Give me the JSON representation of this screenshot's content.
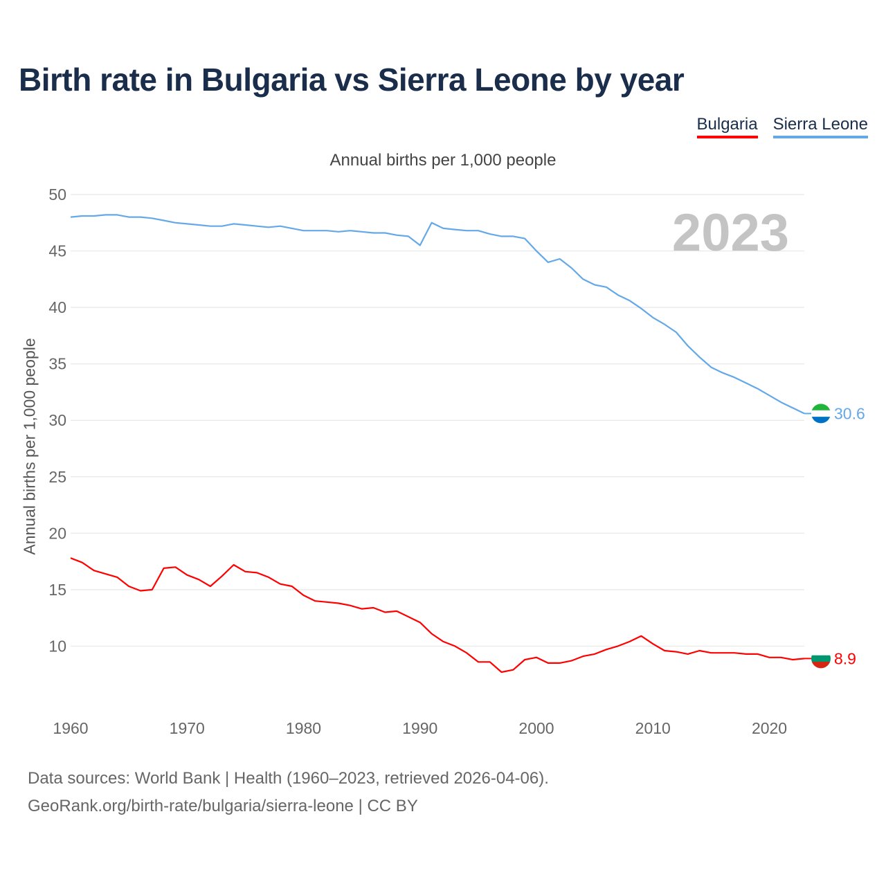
{
  "title": "Birth rate in Bulgaria vs Sierra Leone by year",
  "legend": {
    "bulgaria": "Bulgaria",
    "sierra_leone": "Sierra Leone"
  },
  "subtitle": "Annual births per 1,000 people",
  "ylabel": "Annual births per 1,000 people",
  "year_label": "2023",
  "footer": {
    "line1": "Data sources: World Bank | Health (1960–2023, retrieved 2026-04-06).",
    "line2": "GeoRank.org/birth-rate/bulgaria/sierra-leone | CC BY"
  },
  "colors": {
    "bulgaria": "#ff0000",
    "sierra_leone": "#64a8e8",
    "grid": "#e6e6e6"
  },
  "flags": {
    "bulgaria": [
      "#ffffff",
      "#00966e",
      "#d62612"
    ],
    "sierra_leone": [
      "#1eb53a",
      "#ffffff",
      "#0072c6"
    ]
  },
  "chart_data": {
    "type": "line",
    "title": "Birth rate in Bulgaria vs Sierra Leone by year",
    "subtitle": "Annual births per 1,000 people",
    "xlabel": "",
    "ylabel": "Annual births per 1,000 people",
    "xlim": [
      1960,
      2023
    ],
    "ylim": [
      5,
      50
    ],
    "yticks": [
      10,
      15,
      20,
      25,
      30,
      35,
      40,
      45,
      50
    ],
    "xticks": [
      1960,
      1970,
      1980,
      1990,
      2000,
      2010,
      2020
    ],
    "x": [
      1960,
      1961,
      1962,
      1963,
      1964,
      1965,
      1966,
      1967,
      1968,
      1969,
      1970,
      1971,
      1972,
      1973,
      1974,
      1975,
      1976,
      1977,
      1978,
      1979,
      1980,
      1981,
      1982,
      1983,
      1984,
      1985,
      1986,
      1987,
      1988,
      1989,
      1990,
      1991,
      1992,
      1993,
      1994,
      1995,
      1996,
      1997,
      1998,
      1999,
      2000,
      2001,
      2002,
      2003,
      2004,
      2005,
      2006,
      2007,
      2008,
      2009,
      2010,
      2011,
      2012,
      2013,
      2014,
      2015,
      2016,
      2017,
      2018,
      2019,
      2020,
      2021,
      2022,
      2023
    ],
    "series": [
      {
        "name": "Bulgaria",
        "end_label": "8.9",
        "values": [
          17.8,
          17.4,
          16.7,
          16.4,
          16.1,
          15.3,
          14.9,
          15.0,
          16.9,
          17.0,
          16.3,
          15.9,
          15.3,
          16.2,
          17.2,
          16.6,
          16.5,
          16.1,
          15.5,
          15.3,
          14.5,
          14.0,
          13.9,
          13.8,
          13.6,
          13.3,
          13.4,
          13.0,
          13.1,
          12.6,
          12.1,
          11.1,
          10.4,
          10.0,
          9.4,
          8.6,
          8.6,
          7.7,
          7.9,
          8.8,
          9.0,
          8.5,
          8.5,
          8.7,
          9.1,
          9.3,
          9.7,
          10.0,
          10.4,
          10.9,
          10.2,
          9.6,
          9.5,
          9.3,
          9.6,
          9.4,
          9.4,
          9.4,
          9.3,
          9.3,
          9.0,
          9.0,
          8.8,
          8.9
        ]
      },
      {
        "name": "Sierra Leone",
        "end_label": "30.6",
        "values": [
          48.0,
          48.1,
          48.1,
          48.2,
          48.2,
          48.0,
          48.0,
          47.9,
          47.7,
          47.5,
          47.4,
          47.3,
          47.2,
          47.2,
          47.4,
          47.3,
          47.2,
          47.1,
          47.2,
          47.0,
          46.8,
          46.8,
          46.8,
          46.7,
          46.8,
          46.7,
          46.6,
          46.6,
          46.4,
          46.3,
          45.5,
          47.5,
          47.0,
          46.9,
          46.8,
          46.8,
          46.5,
          46.3,
          46.3,
          46.1,
          45.0,
          44.0,
          44.3,
          43.5,
          42.5,
          42.0,
          41.8,
          41.1,
          40.6,
          39.9,
          39.1,
          38.5,
          37.8,
          36.6,
          35.6,
          34.7,
          34.2,
          33.8,
          33.3,
          32.8,
          32.2,
          31.6,
          31.1,
          30.6
        ]
      }
    ]
  }
}
